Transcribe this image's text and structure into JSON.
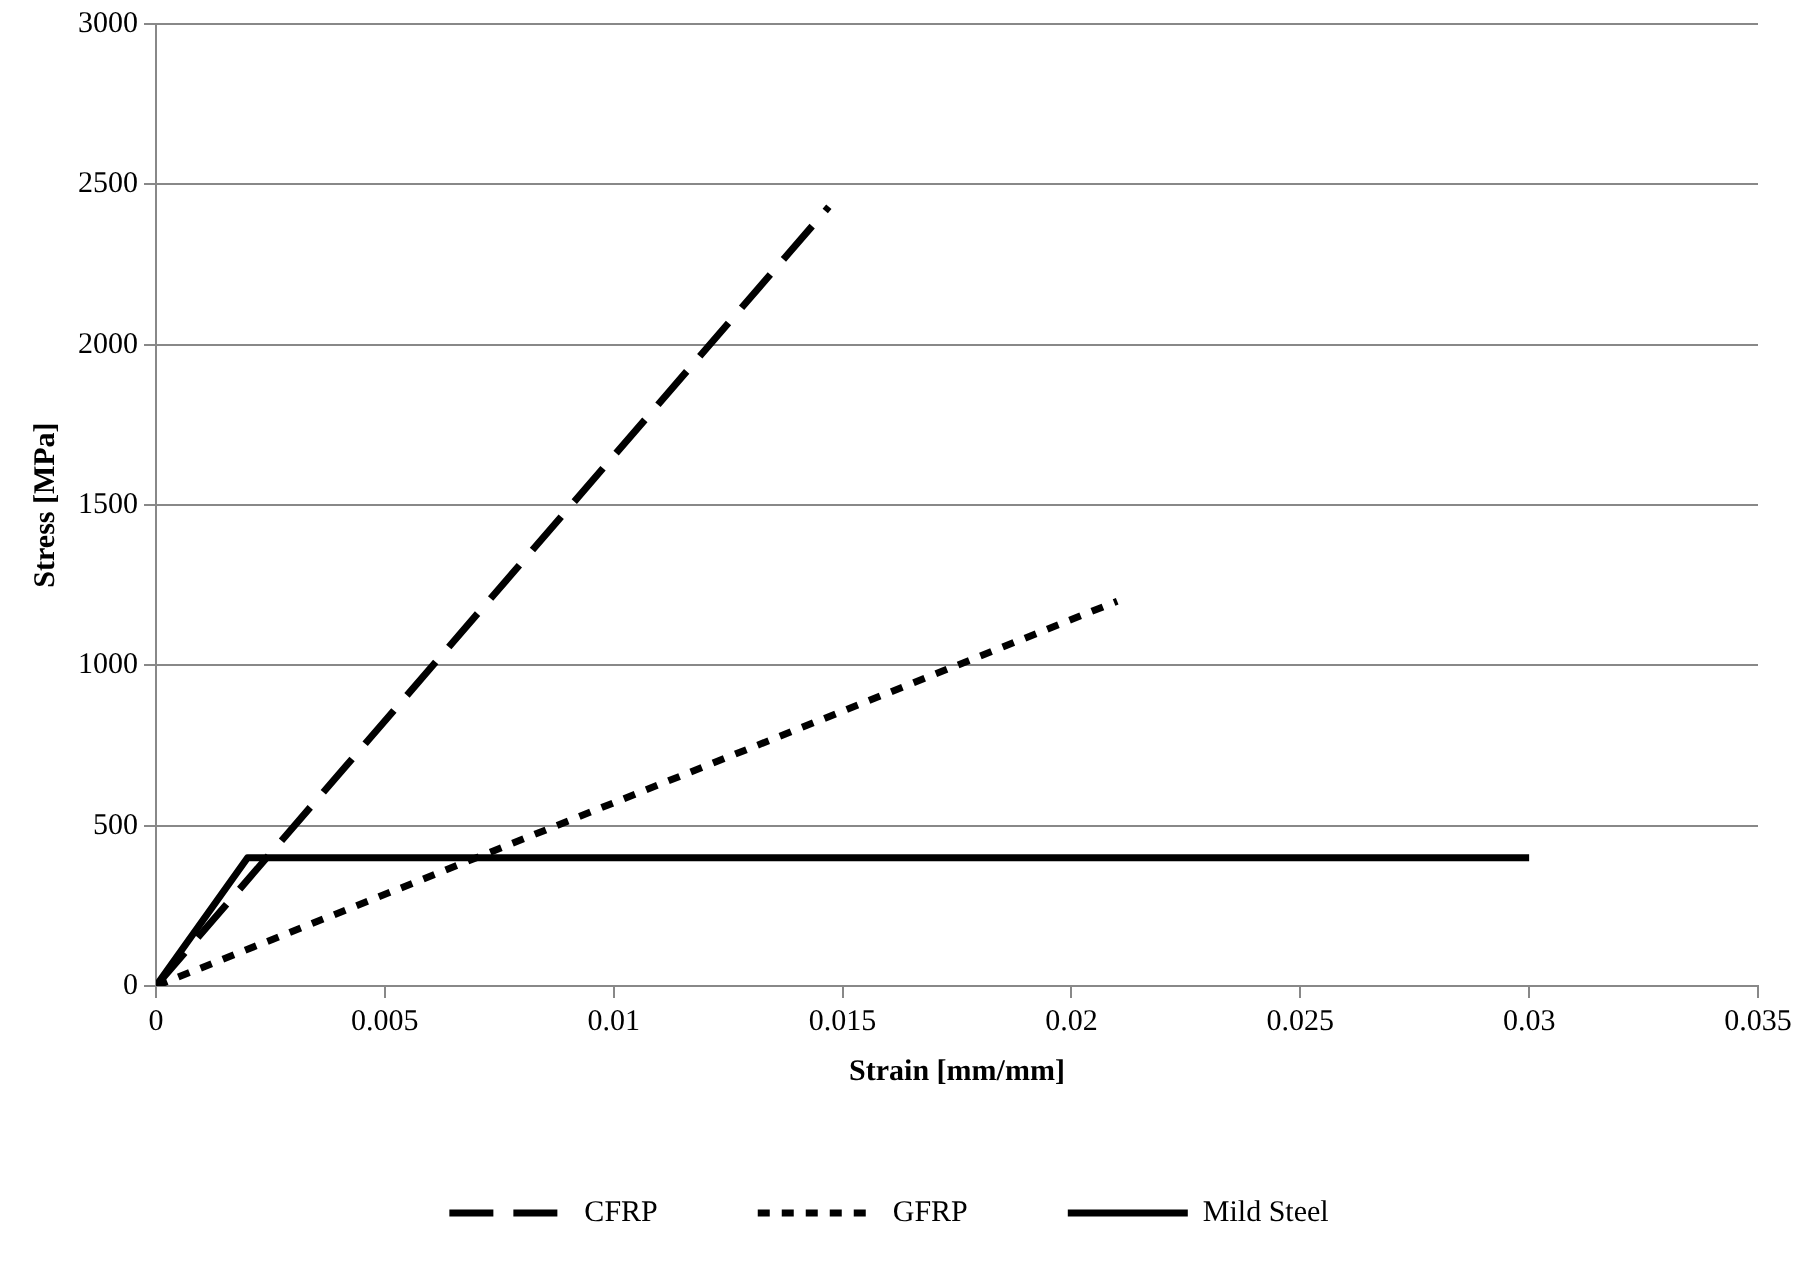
{
  "chart_data": {
    "type": "line",
    "xlabel": "Strain [mm/mm]",
    "ylabel": "Stress [MPa]",
    "xlim": [
      0,
      0.035
    ],
    "xticks": [
      0,
      0.005,
      0.01,
      0.015,
      0.02,
      0.025,
      0.03,
      0.035
    ],
    "ylim": [
      0,
      3000
    ],
    "yticks": [
      0,
      500,
      1000,
      1500,
      2000,
      2500,
      3000
    ],
    "grid": "y",
    "legend": "bottom",
    "marker": "none",
    "series": [
      {
        "name": "CFRP",
        "color": "#000000",
        "line_style": "dashed",
        "x": [
          0,
          0.0147
        ],
        "values": [
          0,
          2430
        ]
      },
      {
        "name": "GFRP",
        "color": "#000000",
        "line_style": "dotted",
        "x": [
          0,
          0.021
        ],
        "values": [
          0,
          1200
        ]
      },
      {
        "name": "Mild Steel",
        "color": "#000000",
        "line_style": "solid",
        "x": [
          0,
          0.002,
          0.03
        ],
        "values": [
          0,
          400,
          400
        ]
      }
    ]
  }
}
